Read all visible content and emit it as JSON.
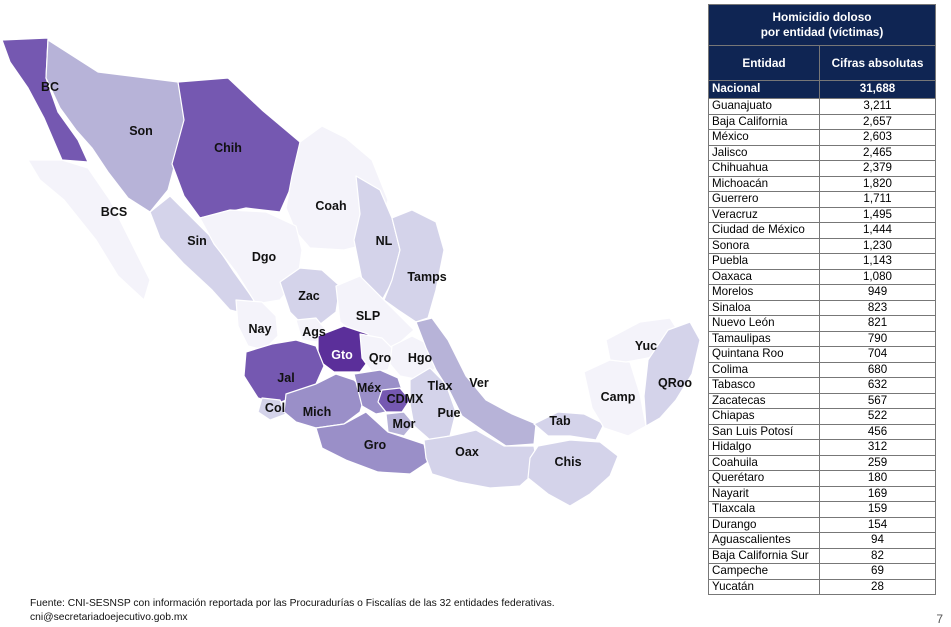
{
  "table": {
    "title_line1": "Homicidio doloso",
    "title_line2": "por entidad (víctimas)",
    "col_entity": "Entidad",
    "col_value": "Cifras absolutas",
    "national": {
      "name": "Nacional",
      "value": "31,688"
    },
    "rows": [
      {
        "name": "Guanajuato",
        "value": "3,211"
      },
      {
        "name": "Baja California",
        "value": "2,657"
      },
      {
        "name": "México",
        "value": "2,603"
      },
      {
        "name": "Jalisco",
        "value": "2,465"
      },
      {
        "name": "Chihuahua",
        "value": "2,379"
      },
      {
        "name": "Michoacán",
        "value": "1,820"
      },
      {
        "name": "Guerrero",
        "value": "1,711"
      },
      {
        "name": "Veracruz",
        "value": "1,495"
      },
      {
        "name": "Ciudad de México",
        "value": "1,444"
      },
      {
        "name": "Sonora",
        "value": "1,230"
      },
      {
        "name": "Puebla",
        "value": "1,143"
      },
      {
        "name": "Oaxaca",
        "value": "1,080"
      },
      {
        "name": "Morelos",
        "value": "949"
      },
      {
        "name": "Sinaloa",
        "value": "823"
      },
      {
        "name": "Nuevo León",
        "value": "821"
      },
      {
        "name": "Tamaulipas",
        "value": "790"
      },
      {
        "name": "Quintana Roo",
        "value": "704"
      },
      {
        "name": "Colima",
        "value": "680"
      },
      {
        "name": "Tabasco",
        "value": "632"
      },
      {
        "name": "Zacatecas",
        "value": "567"
      },
      {
        "name": "Chiapas",
        "value": "522"
      },
      {
        "name": "San Luis Potosí",
        "value": "456"
      },
      {
        "name": "Hidalgo",
        "value": "312"
      },
      {
        "name": "Coahuila",
        "value": "259"
      },
      {
        "name": "Querétaro",
        "value": "180"
      },
      {
        "name": "Nayarit",
        "value": "169"
      },
      {
        "name": "Tlaxcala",
        "value": "159"
      },
      {
        "name": "Durango",
        "value": "154"
      },
      {
        "name": "Aguascalientes",
        "value": "94"
      },
      {
        "name": "Baja California Sur",
        "value": "82"
      },
      {
        "name": "Campeche",
        "value": "69"
      },
      {
        "name": "Yucatán",
        "value": "28"
      }
    ]
  },
  "map": {
    "colors": {
      "level1": "#f4f3fa",
      "level2": "#d4d3ea",
      "level3": "#b7b3d8",
      "level4": "#9a8fc8",
      "level5": "#7558b1",
      "level6": "#5b2f9a"
    },
    "states": [
      {
        "abbr": "BC",
        "level": 5
      },
      {
        "abbr": "Son",
        "level": 3
      },
      {
        "abbr": "Chih",
        "level": 5
      },
      {
        "abbr": "BCS",
        "level": 1
      },
      {
        "abbr": "Coah",
        "level": 1
      },
      {
        "abbr": "Sin",
        "level": 2
      },
      {
        "abbr": "Dgo",
        "level": 1
      },
      {
        "abbr": "NL",
        "level": 2
      },
      {
        "abbr": "Tamps",
        "level": 2
      },
      {
        "abbr": "Zac",
        "level": 2
      },
      {
        "abbr": "SLP",
        "level": 1
      },
      {
        "abbr": "Nay",
        "level": 1
      },
      {
        "abbr": "Ags",
        "level": 1
      },
      {
        "abbr": "Gto",
        "level": 6
      },
      {
        "abbr": "Qro",
        "level": 1
      },
      {
        "abbr": "Hgo",
        "level": 1
      },
      {
        "abbr": "Jal",
        "level": 5
      },
      {
        "abbr": "Méx",
        "level": 4
      },
      {
        "abbr": "Tlax",
        "level": 1
      },
      {
        "abbr": "Ver",
        "level": 3
      },
      {
        "abbr": "Col",
        "level": 2
      },
      {
        "abbr": "Mich",
        "level": 4
      },
      {
        "abbr": "CDMX",
        "level": 5
      },
      {
        "abbr": "Mor",
        "level": 3
      },
      {
        "abbr": "Pue",
        "level": 2
      },
      {
        "abbr": "Gro",
        "level": 4
      },
      {
        "abbr": "Oax",
        "level": 2
      },
      {
        "abbr": "Tab",
        "level": 2
      },
      {
        "abbr": "Chis",
        "level": 2
      },
      {
        "abbr": "Camp",
        "level": 1
      },
      {
        "abbr": "Yuc",
        "level": 1
      },
      {
        "abbr": "QRoo",
        "level": 2
      }
    ]
  },
  "footer": {
    "source": "Fuente: CNI-SESNSP con información reportada por las Procuradurías o Fiscalías de las 32 entidades federativas.",
    "email": "cni@secretariadoejecutivo.gob.mx"
  },
  "page_number": "7"
}
